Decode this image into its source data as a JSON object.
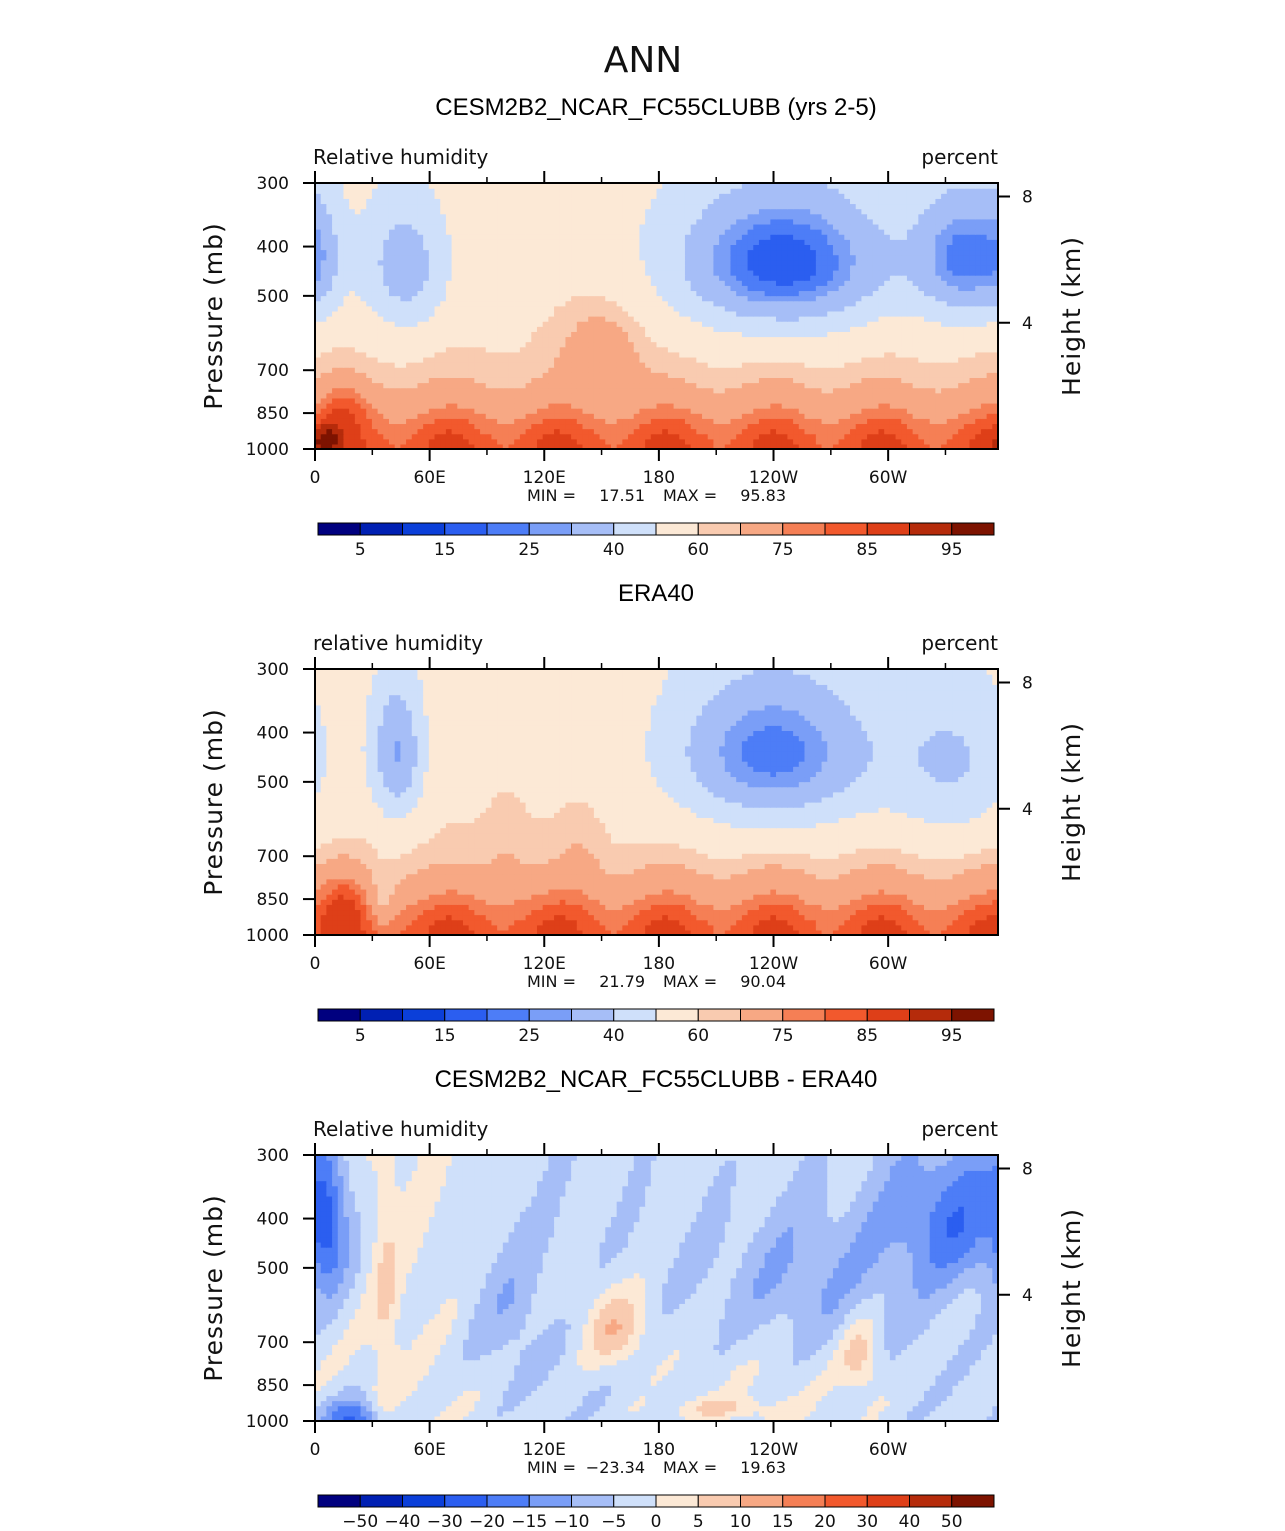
{
  "figure": {
    "season": "ANN"
  },
  "colors": {
    "abs_scale": [
      "#00007f",
      "#0020b3",
      "#0b3fd9",
      "#2b5ef0",
      "#4d7df7",
      "#7a9ef7",
      "#a6bef7",
      "#cfe0fa",
      "#fce9d6",
      "#f9cbb0",
      "#f7a884",
      "#f57f55",
      "#f2592d",
      "#de3f18",
      "#b52b0b",
      "#7d1300"
    ],
    "diff_scale": [
      "#00007f",
      "#0020b3",
      "#0b3fd9",
      "#2b5ef0",
      "#4d7df7",
      "#7a9ef7",
      "#a6bef7",
      "#cfe0fa",
      "#fce9d6",
      "#f9cbb0",
      "#f7a884",
      "#f57f55",
      "#f2592d",
      "#de3f18",
      "#b52b0b",
      "#7d1300"
    ]
  },
  "chart_data": [
    {
      "type": "heatmap",
      "title": "CESM2B2_NCAR_FC55CLUBB (yrs 2-5)",
      "left_label": "Relative  humidity",
      "right_label": "percent",
      "ylabel": "Pressure (mb)",
      "ylabel_right": "Height (km)",
      "x_ticks": [
        "0",
        "60E",
        "120E",
        "180",
        "120W",
        "60W"
      ],
      "x_values": [
        0,
        60,
        120,
        180,
        240,
        300
      ],
      "xlim": [
        0,
        357.5
      ],
      "y_ticks": [
        "300",
        "400",
        "500",
        "700",
        "850",
        "1000"
      ],
      "y_values": [
        300,
        400,
        500,
        700,
        850,
        1000
      ],
      "ylim": [
        1000,
        300
      ],
      "y_right_ticks": [
        "8",
        "4"
      ],
      "y_right_values": [
        8,
        4
      ],
      "min_label": "MIN =",
      "min": "17.51",
      "max_label": "MAX =",
      "max": "95.83",
      "colorbar_labels": [
        "5",
        "15",
        "25",
        "40",
        "60",
        "75",
        "85",
        "95"
      ],
      "levels": [
        5,
        10,
        15,
        20,
        25,
        30,
        40,
        50,
        60,
        65,
        75,
        80,
        85,
        90,
        95
      ],
      "scale": "abs",
      "features": [
        {
          "lon": 245,
          "lev": 430,
          "slon": 40,
          "slev": 100,
          "amp": -42
        },
        {
          "lon": 340,
          "lev": 420,
          "slon": 18,
          "slev": 90,
          "amp": -33
        },
        {
          "lon": 47,
          "lev": 440,
          "slon": 16,
          "slev": 95,
          "amp": -24
        },
        {
          "lon": 2,
          "lev": 420,
          "slon": 9,
          "slev": 90,
          "amp": -14
        },
        {
          "lon": 150,
          "lev": 640,
          "slon": 14,
          "slev": 90,
          "amp": 12
        },
        {
          "lon": 130,
          "lev": 300,
          "slon": 25,
          "slev": 70,
          "amp": -5
        },
        {
          "lon": 15,
          "lev": 820,
          "slon": 10,
          "slev": 70,
          "amp": 9
        },
        {
          "lon": 5,
          "lev": 960,
          "slon": 5,
          "slev": 45,
          "amp": 14
        }
      ]
    },
    {
      "type": "heatmap",
      "title": "ERA40",
      "left_label": "relative  humidity",
      "right_label": "percent",
      "ylabel": "Pressure (mb)",
      "ylabel_right": "Height (km)",
      "x_ticks": [
        "0",
        "60E",
        "120E",
        "180",
        "120W",
        "60W"
      ],
      "x_values": [
        0,
        60,
        120,
        180,
        240,
        300
      ],
      "xlim": [
        0,
        357.5
      ],
      "y_ticks": [
        "300",
        "400",
        "500",
        "700",
        "850",
        "1000"
      ],
      "y_values": [
        300,
        400,
        500,
        700,
        850,
        1000
      ],
      "ylim": [
        1000,
        300
      ],
      "y_right_ticks": [
        "8",
        "4"
      ],
      "y_right_values": [
        8,
        4
      ],
      "min_label": "MIN =",
      "min": "21.79",
      "max_label": "MAX =",
      "max": "90.04",
      "colorbar_labels": [
        "5",
        "15",
        "25",
        "40",
        "60",
        "75",
        "85",
        "95"
      ],
      "levels": [
        5,
        10,
        15,
        20,
        25,
        30,
        40,
        50,
        60,
        65,
        75,
        80,
        85,
        90,
        95
      ],
      "scale": "abs",
      "features": [
        {
          "lon": 240,
          "lev": 440,
          "slon": 38,
          "slev": 110,
          "amp": -36
        },
        {
          "lon": 335,
          "lev": 460,
          "slon": 24,
          "slev": 120,
          "amp": -18
        },
        {
          "lon": 43,
          "lev": 440,
          "slon": 10,
          "slev": 100,
          "amp": -28
        },
        {
          "lon": 35,
          "lev": 860,
          "slon": 5,
          "slev": 80,
          "amp": -10
        },
        {
          "lon": 100,
          "lev": 700,
          "slon": 8,
          "slev": 120,
          "amp": 4
        },
        {
          "lon": 140,
          "lev": 700,
          "slon": 8,
          "slev": 120,
          "amp": 4
        },
        {
          "lon": 15,
          "lev": 830,
          "slon": 9,
          "slev": 80,
          "amp": 8
        }
      ]
    },
    {
      "type": "heatmap",
      "title": "CESM2B2_NCAR_FC55CLUBB - ERA40",
      "left_label": "Relative  humidity",
      "right_label": "percent",
      "ylabel": "Pressure (mb)",
      "ylabel_right": "Height (km)",
      "x_ticks": [
        "0",
        "60E",
        "120E",
        "180",
        "120W",
        "60W"
      ],
      "x_values": [
        0,
        60,
        120,
        180,
        240,
        300
      ],
      "xlim": [
        0,
        357.5
      ],
      "y_ticks": [
        "300",
        "400",
        "500",
        "700",
        "850",
        "1000"
      ],
      "y_values": [
        300,
        400,
        500,
        700,
        850,
        1000
      ],
      "ylim": [
        1000,
        300
      ],
      "y_right_ticks": [
        "8",
        "4"
      ],
      "y_right_values": [
        8,
        4
      ],
      "min_label": "MIN =",
      "min": "−23.34",
      "max_label": "MAX =",
      "max": "19.63",
      "colorbar_labels": [
        "−50",
        "−40",
        "−30",
        "−20",
        "−15",
        "−10",
        "−5",
        "0",
        "5",
        "10",
        "15",
        "20",
        "30",
        "40",
        "50"
      ],
      "levels": [
        -50,
        -40,
        -30,
        -20,
        -15,
        -10,
        -5,
        0,
        5,
        10,
        15,
        20,
        30,
        40,
        50
      ],
      "scale": "diff",
      "features": [
        {
          "lon": 6,
          "lev": 410,
          "slon": 8,
          "slev": 100,
          "amp": -18
        },
        {
          "lon": 20,
          "lev": 990,
          "slon": 10,
          "slev": 60,
          "amp": -20
        },
        {
          "lon": 335,
          "lev": 400,
          "slon": 22,
          "slev": 90,
          "amp": -14
        },
        {
          "lon": 255,
          "lev": 520,
          "slon": 40,
          "slev": 140,
          "amp": -9
        },
        {
          "lon": 157,
          "lev": 660,
          "slon": 12,
          "slev": 80,
          "amp": 12
        },
        {
          "lon": 37,
          "lev": 560,
          "slon": 5,
          "slev": 300,
          "amp": 6
        },
        {
          "lon": 285,
          "lev": 740,
          "slon": 8,
          "slev": 100,
          "amp": 10
        },
        {
          "lon": 210,
          "lev": 940,
          "slon": 20,
          "slev": 30,
          "amp": 7
        },
        {
          "lon": 100,
          "lev": 600,
          "slon": 15,
          "slev": 160,
          "amp": -6
        }
      ]
    }
  ]
}
